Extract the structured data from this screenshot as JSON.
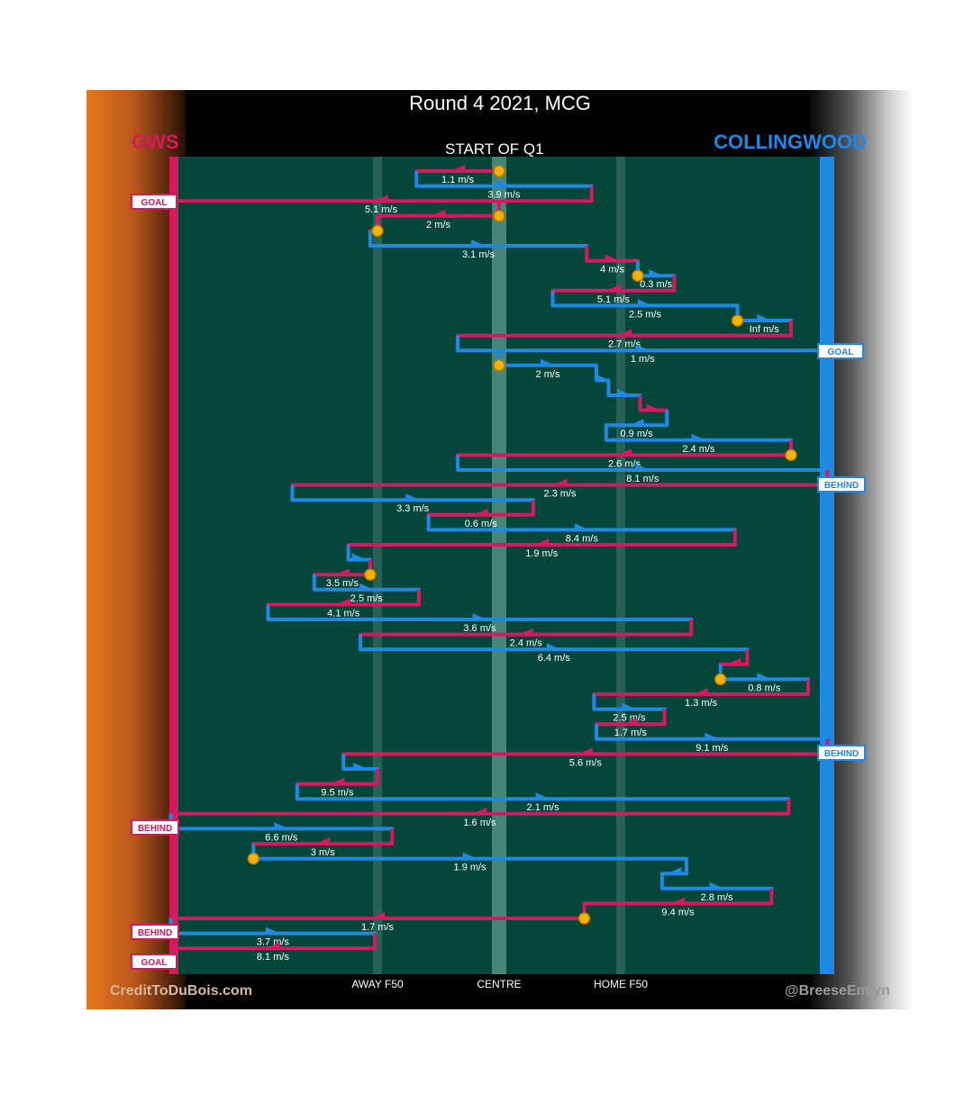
{
  "title": "Round 4 2021, MCG",
  "home_team": "GWS",
  "away_team": "COLLINGWOOD",
  "period_label": "START OF Q1",
  "credit_left": "CreditToDuBois.com",
  "credit_right": "@BreeseEmlyn",
  "colors": {
    "home": "#d6185f",
    "away": "#1e88e5",
    "field": "#04473a",
    "ball_marker": "#f5b400"
  },
  "chart_data": {
    "type": "line",
    "title": "Round 4 2021, MCG",
    "x_ticks": [
      {
        "label": "AWAY F50",
        "x": -50
      },
      {
        "label": "CENTRE",
        "x": 0
      },
      {
        "label": "HOME F50",
        "x": 50
      }
    ],
    "xlim": [
      -135,
      135
    ],
    "events": [
      {
        "label": "GOAL",
        "team": "GWS",
        "end": "left"
      },
      {
        "label": "GOAL",
        "team": "COLLINGWOOD",
        "end": "right"
      },
      {
        "label": "BEHIND",
        "team": "COLLINGWOOD",
        "end": "right"
      },
      {
        "label": "BEHIND",
        "team": "COLLINGWOOD",
        "end": "right"
      },
      {
        "label": "BEHIND",
        "team": "GWS",
        "end": "left"
      },
      {
        "label": "BEHIND",
        "team": "GWS",
        "end": "left"
      },
      {
        "label": "GOAL",
        "team": "GWS",
        "end": "left"
      }
    ],
    "chains": [
      {
        "team": "GWS",
        "speed": "1.1 m/s",
        "from": 0,
        "to": -34
      },
      {
        "team": "COLLINGWOOD",
        "speed": "3.9 m/s",
        "from": -34,
        "to": 38
      },
      {
        "team": "GWS",
        "speed": "5.1 m/s",
        "from": 38,
        "to": -135
      },
      {
        "team": "GWS",
        "speed": "2 m/s",
        "from": 0,
        "to": -50
      },
      {
        "team": "GWS",
        "speed": "",
        "from": -50,
        "to": -53
      },
      {
        "team": "COLLINGWOOD",
        "speed": "3.1 m/s",
        "from": -53,
        "to": 36
      },
      {
        "team": "GWS",
        "speed": "4 m/s",
        "from": 36,
        "to": 57
      },
      {
        "team": "COLLINGWOOD",
        "speed": "0.3 m/s",
        "from": 57,
        "to": 72
      },
      {
        "team": "GWS",
        "speed": "5.1 m/s",
        "from": 72,
        "to": 22
      },
      {
        "team": "COLLINGWOOD",
        "speed": "2.5 m/s",
        "from": 22,
        "to": 98
      },
      {
        "team": "COLLINGWOOD",
        "speed": "Inf m/s",
        "from": 98,
        "to": 120
      },
      {
        "team": "GWS",
        "speed": "2.7 m/s",
        "from": 120,
        "to": -17
      },
      {
        "team": "COLLINGWOOD",
        "speed": "1 m/s",
        "from": -17,
        "to": 135
      },
      {
        "team": "COLLINGWOOD",
        "speed": "2 m/s",
        "from": 0,
        "to": 40
      },
      {
        "team": "COLLINGWOOD",
        "speed": "",
        "from": 40,
        "to": 45
      },
      {
        "team": "COLLINGWOOD",
        "speed": "",
        "from": 45,
        "to": 58
      },
      {
        "team": "GWS",
        "speed": "",
        "from": 58,
        "to": 69
      },
      {
        "team": "COLLINGWOOD",
        "speed": "0.9 m/s",
        "from": 69,
        "to": 44
      },
      {
        "team": "COLLINGWOOD",
        "speed": "2.4 m/s",
        "from": 44,
        "to": 120
      },
      {
        "team": "GWS",
        "speed": "2.6 m/s",
        "from": 120,
        "to": -17
      },
      {
        "team": "COLLINGWOOD",
        "speed": "8.1 m/s",
        "from": -17,
        "to": 135
      },
      {
        "team": "GWS",
        "speed": "2.3 m/s",
        "from": 135,
        "to": -85
      },
      {
        "team": "COLLINGWOOD",
        "speed": "3.3 m/s",
        "from": -85,
        "to": 14
      },
      {
        "team": "GWS",
        "speed": "0.6 m/s",
        "from": 14,
        "to": -29
      },
      {
        "team": "COLLINGWOOD",
        "speed": "8.4 m/s",
        "from": -29,
        "to": 97
      },
      {
        "team": "GWS",
        "speed": "1.9 m/s",
        "from": 97,
        "to": -62
      },
      {
        "team": "COLLINGWOOD",
        "speed": "",
        "from": -62,
        "to": -53
      },
      {
        "team": "GWS",
        "speed": "3.5 m/s",
        "from": -53,
        "to": -76
      },
      {
        "team": "COLLINGWOOD",
        "speed": "2.5 m/s",
        "from": -76,
        "to": -33
      },
      {
        "team": "GWS",
        "speed": "4.1 m/s",
        "from": -33,
        "to": -95
      },
      {
        "team": "COLLINGWOOD",
        "speed": "3.6 m/s",
        "from": -95,
        "to": 79
      },
      {
        "team": "GWS",
        "speed": "2.4 m/s",
        "from": 79,
        "to": -57
      },
      {
        "team": "COLLINGWOOD",
        "speed": "6.4 m/s",
        "from": -57,
        "to": 102
      },
      {
        "team": "GWS",
        "speed": "",
        "from": 102,
        "to": 91
      },
      {
        "team": "COLLINGWOOD",
        "speed": "0.8 m/s",
        "from": 91,
        "to": 127
      },
      {
        "team": "GWS",
        "speed": "1.3 m/s",
        "from": 127,
        "to": 39
      },
      {
        "team": "COLLINGWOOD",
        "speed": "2.5 m/s",
        "from": 39,
        "to": 68
      },
      {
        "team": "GWS",
        "speed": "1.7 m/s",
        "from": 68,
        "to": 40
      },
      {
        "team": "COLLINGWOOD",
        "speed": "9.1 m/s",
        "from": 40,
        "to": 135
      },
      {
        "team": "GWS",
        "speed": "5.6 m/s",
        "from": 135,
        "to": -64
      },
      {
        "team": "COLLINGWOOD",
        "speed": "",
        "from": -64,
        "to": -50
      },
      {
        "team": "GWS",
        "speed": "9.5 m/s",
        "from": -50,
        "to": -83
      },
      {
        "team": "COLLINGWOOD",
        "speed": "2.1 m/s",
        "from": -83,
        "to": 119
      },
      {
        "team": "GWS",
        "speed": "1.6 m/s",
        "from": 119,
        "to": -135
      },
      {
        "team": "COLLINGWOOD",
        "speed": "6.6 m/s",
        "from": -135,
        "to": -44
      },
      {
        "team": "GWS",
        "speed": "3 m/s",
        "from": -44,
        "to": -101
      },
      {
        "team": "COLLINGWOOD",
        "speed": "1.9 m/s",
        "from": -101,
        "to": 77
      },
      {
        "team": "COLLINGWOOD",
        "speed": "",
        "from": 77,
        "to": 67
      },
      {
        "team": "COLLINGWOOD",
        "speed": "2.8 m/s",
        "from": 67,
        "to": 112
      },
      {
        "team": "GWS",
        "speed": "9.4 m/s",
        "from": 112,
        "to": 35
      },
      {
        "team": "GWS",
        "speed": "1.7 m/s",
        "from": 35,
        "to": -135
      },
      {
        "team": "COLLINGWOOD",
        "speed": "3.7 m/s",
        "from": -135,
        "to": -51
      },
      {
        "team": "GWS",
        "speed": "8.1 m/s",
        "from": -51,
        "to": -135
      }
    ]
  }
}
